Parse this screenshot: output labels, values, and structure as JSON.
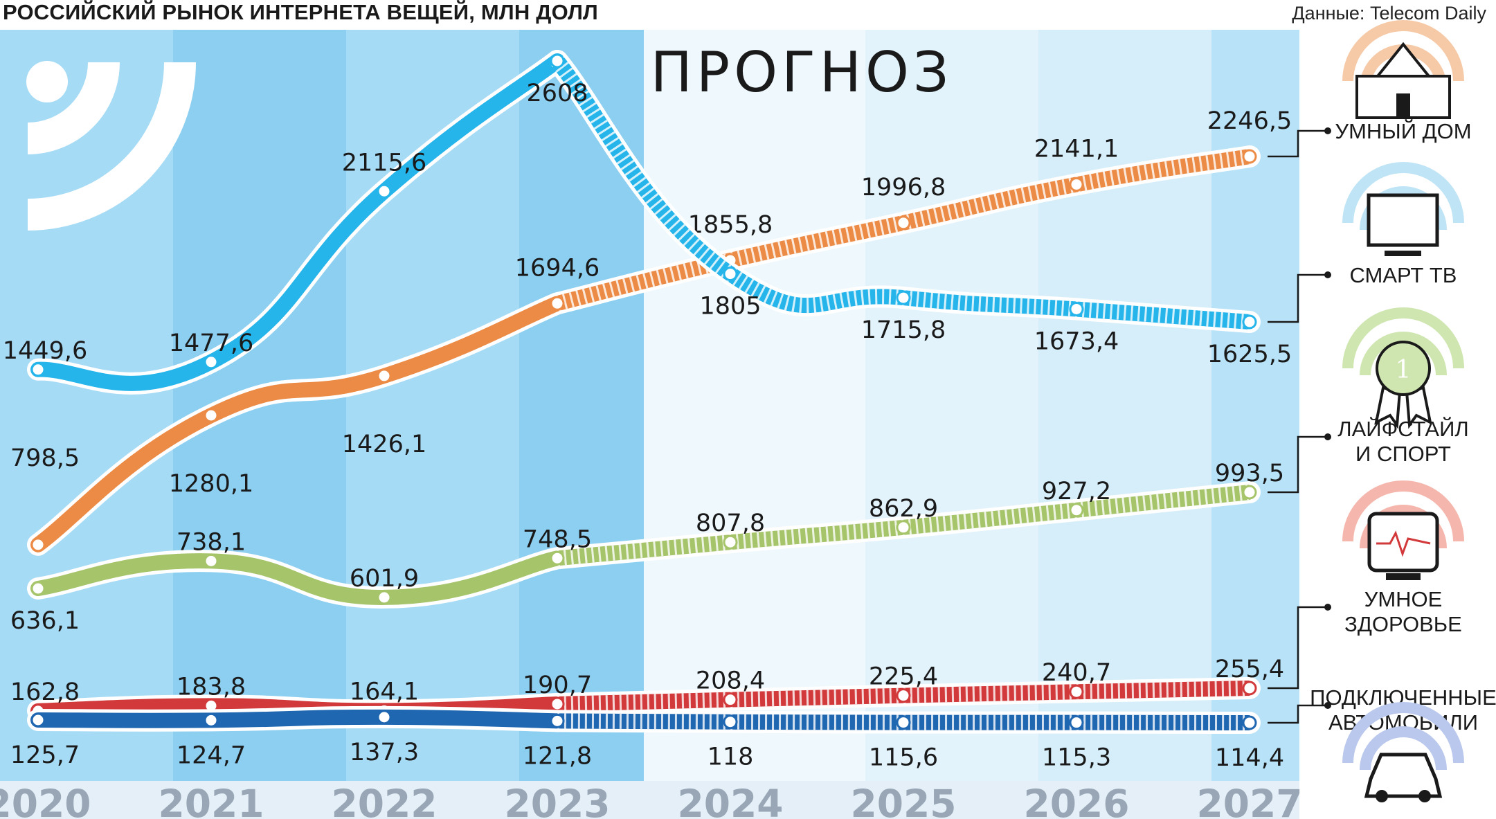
{
  "title": "РОССИЙСКИЙ РЫНОК ИНТЕРНЕТА ВЕЩЕЙ, МЛН ДОЛЛ",
  "source": "Данные: Telecom Daily",
  "forecast_label": "ПРОГНОЗ",
  "icons": [
    "house-icon",
    "tv-icon",
    "award-icon",
    "health-monitor-icon",
    "car-icon",
    "wifi-logo-icon"
  ],
  "chart_data": {
    "type": "line",
    "title": "РОССИЙСКИЙ РЫНОК ИНТЕРНЕТА ВЕЩЕЙ, МЛН ДОЛЛ",
    "x": [
      "2020",
      "2021",
      "2022",
      "2023",
      "2024",
      "2025",
      "2026",
      "2027"
    ],
    "forecast_from": "2024",
    "series": [
      {
        "name": "УМНЫЙ ДОМ",
        "color": "#ec8b45",
        "values": [
          798.5,
          1280.1,
          1426.1,
          1694.6,
          1855.8,
          1996.8,
          2141.1,
          2246.5
        ],
        "labels": [
          "798,5",
          "1280,1",
          "1426,1",
          "1694,6",
          "1855,8",
          "1996,8",
          "2141,1",
          "2246,5"
        ]
      },
      {
        "name": "СМАРТ ТВ",
        "color": "#26b5ea",
        "values": [
          1449.6,
          1477.6,
          2115.6,
          2608,
          1805,
          1715.8,
          1673.4,
          1625.5
        ],
        "labels": [
          "1449,6",
          "1477,6",
          "2115,6",
          "2608",
          "1805",
          "1715,8",
          "1673,4",
          "1625,5"
        ]
      },
      {
        "name": "ЛАЙФСТАЙЛ И СПОРТ",
        "color": "#a6c46a",
        "values": [
          636.1,
          738.1,
          601.9,
          748.5,
          807.8,
          862.9,
          927.2,
          993.5
        ],
        "labels": [
          "636,1",
          "738,1",
          "601,9",
          "748,5",
          "807,8",
          "862,9",
          "927,2",
          "993,5"
        ]
      },
      {
        "name": "УМНОЕ ЗДОРОВЬЕ",
        "color": "#d2393b",
        "values": [
          162.8,
          183.8,
          164.1,
          190.7,
          208.4,
          225.4,
          240.7,
          255.4
        ],
        "labels": [
          "162,8",
          "183,8",
          "164,1",
          "190,7",
          "208,4",
          "225,4",
          "240,7",
          "255,4"
        ]
      },
      {
        "name": "ПОДКЛЮЧЕННЫЕ АВТОМОБИЛИ",
        "color": "#1f67b1",
        "values": [
          125.7,
          124.7,
          137.3,
          121.8,
          118,
          115.6,
          115.3,
          114.4
        ],
        "labels": [
          "125,7",
          "124,7",
          "137,3",
          "121,8",
          "118",
          "115,6",
          "115,3",
          "114,4"
        ]
      }
    ],
    "legend": [
      {
        "lines": [
          "УМНЫЙ ДОМ"
        ]
      },
      {
        "lines": [
          "СМАРТ ТВ"
        ]
      },
      {
        "lines": [
          "ЛАЙФСТАЙЛ",
          "И СПОРТ"
        ]
      },
      {
        "lines": [
          "УМНОЕ",
          "ЗДОРОВЬЕ"
        ]
      },
      {
        "lines": [
          "ПОДКЛЮЧЕННЫЕ",
          "АВТОМОБИЛИ"
        ]
      }
    ]
  }
}
